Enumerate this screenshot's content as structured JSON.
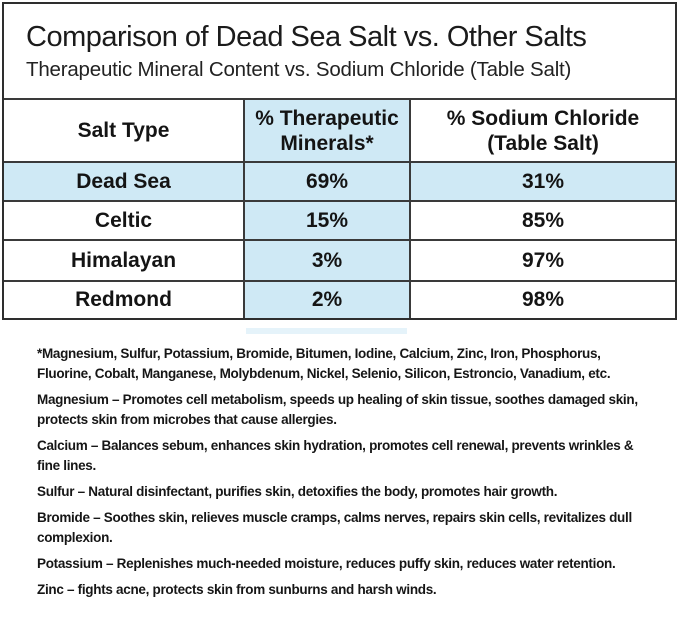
{
  "title": "Comparison of Dead Sea Salt vs. Other Salts",
  "subtitle": "Therapeutic Mineral Content vs. Sodium Chloride (Table Salt)",
  "table": {
    "headers": {
      "salt_type": "Salt Type",
      "therapeutic": "% Therapeutic Minerals*",
      "sodium": "% Sodium Chloride (Table Salt)"
    },
    "rows": [
      {
        "name": "Dead Sea",
        "therapeutic": "69%",
        "sodium": "31%",
        "highlighted": true
      },
      {
        "name": "Celtic",
        "therapeutic": "15%",
        "sodium": "85%",
        "highlighted": false
      },
      {
        "name": "Himalayan",
        "therapeutic": "3%",
        "sodium": "97%",
        "highlighted": false
      },
      {
        "name": "Redmond",
        "therapeutic": "2%",
        "sodium": "98%",
        "highlighted": false
      }
    ]
  },
  "footnotes": {
    "paragraphs": [
      "*Magnesium, Sulfur, Potassium, Bromide, Bitumen, Iodine, Calcium, Zinc, Iron, Phosphorus, Fluorine, Cobalt, Manganese, Molybdenum, Nickel, Selenio, Silicon, Estroncio, Vanadium, etc.",
      "Magnesium – Promotes cell metabolism, speeds up healing of skin tissue, soothes damaged skin, protects skin from microbes that cause allergies.",
      "Calcium – Balances sebum, enhances skin hydration, promotes cell renewal, prevents wrinkles & fine lines.",
      "Sulfur – Natural disinfectant, purifies skin, detoxifies the body, promotes hair growth.",
      "Bromide – Soothes skin, relieves muscle cramps, calms nerves, repairs skin cells, revitalizes dull complexion.",
      "Potassium – Replenishes much-needed moisture, reduces puffy skin, reduces water retention.",
      "Zinc – fights acne, protects skin from sunburns and harsh winds."
    ]
  },
  "colors": {
    "highlight_blue": "#cfe9f5",
    "border": "#3a3a3a",
    "text": "#141414"
  },
  "chart_data": {
    "type": "table",
    "title": "Comparison of Dead Sea Salt vs. Other Salts",
    "subtitle": "Therapeutic Mineral Content vs. Sodium Chloride (Table Salt)",
    "columns": [
      "Salt Type",
      "% Therapeutic Minerals*",
      "% Sodium Chloride (Table Salt)"
    ],
    "rows": [
      [
        "Dead Sea",
        69,
        31
      ],
      [
        "Celtic",
        15,
        85
      ],
      [
        "Himalayan",
        3,
        97
      ],
      [
        "Redmond",
        2,
        98
      ]
    ],
    "units": "percent",
    "highlighted_row": "Dead Sea",
    "highlighted_column": "% Therapeutic Minerals*"
  }
}
